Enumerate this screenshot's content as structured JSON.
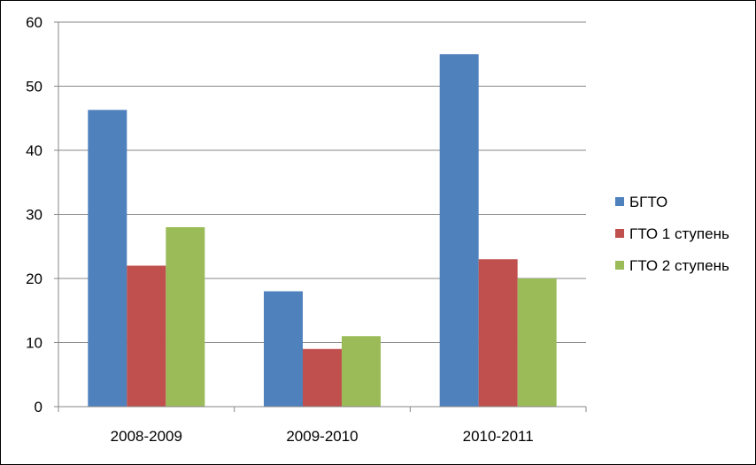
{
  "chart_data": {
    "type": "bar",
    "title": "",
    "xlabel": "",
    "ylabel": "",
    "categories": [
      "2008-2009",
      "2009-2010",
      "2010-2011"
    ],
    "series": [
      {
        "name": "БГТО",
        "color": "#4F81BD",
        "values": [
          46.3,
          18,
          55
        ]
      },
      {
        "name": "ГТО 1 ступень",
        "color": "#C0504D",
        "values": [
          22,
          9,
          23
        ]
      },
      {
        "name": "ГТО 2 ступень",
        "color": "#9BBB59",
        "values": [
          28,
          11,
          20
        ]
      }
    ],
    "ylim": [
      0,
      60
    ],
    "yticks": [
      0,
      10,
      20,
      30,
      40,
      50,
      60
    ],
    "grid": true,
    "legend_position": "right"
  }
}
